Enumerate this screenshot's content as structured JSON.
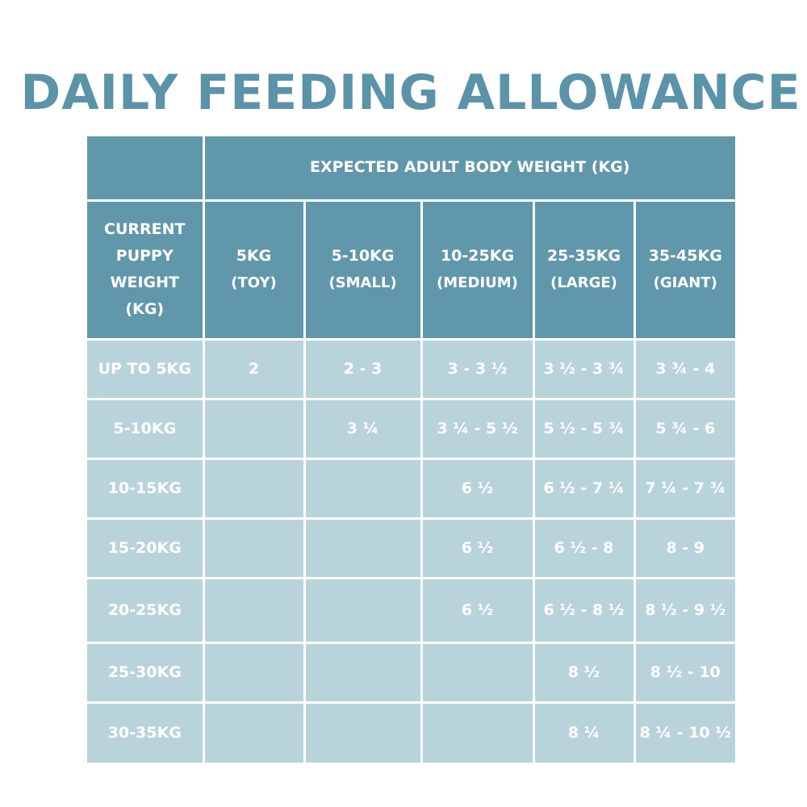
{
  "title": "DAILY FEEDING ALLOWANCE",
  "expected_header": "EXPECTED ADULT BODY WEIGHT (KG)",
  "current_header": "CURRENT PUPPY WEIGHT (KG)",
  "columns": [
    {
      "weight": "5KG",
      "size": "(TOY)"
    },
    {
      "weight": "5-10KG",
      "size": "(SMALL)"
    },
    {
      "weight": "10-25KG",
      "size": "(MEDIUM)"
    },
    {
      "weight": "25-35KG",
      "size": "(LARGE)"
    },
    {
      "weight": "35-45KG",
      "size": "(GIANT)"
    }
  ],
  "rows": [
    {
      "label": "UP TO 5KG",
      "cells": [
        "2",
        "2 - 3",
        "3 - 3 ½",
        "3 ½ - 3 ¾",
        "3 ¾ - 4"
      ]
    },
    {
      "label": "5-10KG",
      "cells": [
        "",
        "3 ¼",
        "3 ¼  - 5 ½",
        "5 ½ - 5 ¾",
        "5 ¾ - 6"
      ]
    },
    {
      "label": "10-15KG",
      "cells": [
        "",
        "",
        "6 ½",
        "6 ½ - 7 ¼",
        "7 ¼ - 7 ¾"
      ]
    },
    {
      "label": "15-20KG",
      "cells": [
        "",
        "",
        "6 ½",
        "6 ½  - 8",
        "8 - 9"
      ]
    },
    {
      "label": "20-25KG",
      "cells": [
        "",
        "",
        "6 ½",
        "6 ½  - 8 ½",
        "8 ½ - 9 ½"
      ]
    },
    {
      "label": "25-30KG",
      "cells": [
        "",
        "",
        "",
        "8 ½",
        "8 ½ - 10"
      ]
    },
    {
      "label": "30-35KG",
      "cells": [
        "",
        "",
        "",
        "8 ¼",
        "8 ¼  - 10 ½"
      ]
    }
  ]
}
